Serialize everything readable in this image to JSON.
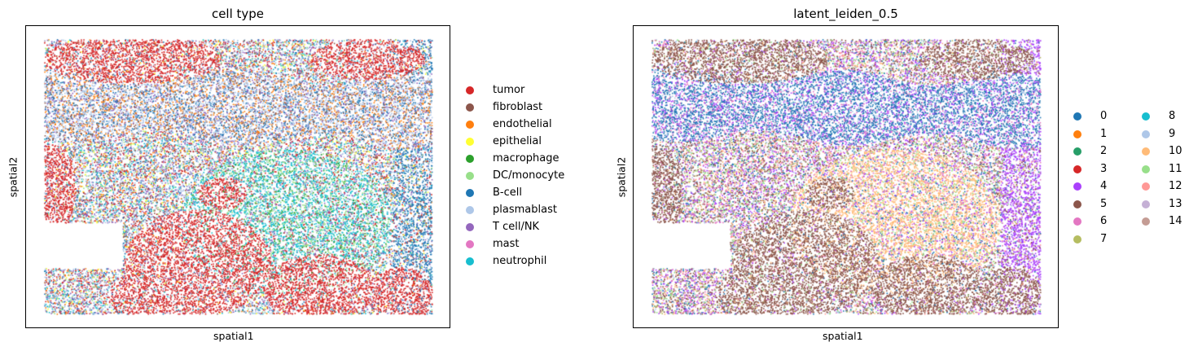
{
  "chart_data": [
    {
      "type": "scatter",
      "title": "cell type",
      "xlabel": "spatial1",
      "ylabel": "spatial2",
      "xticks": [],
      "yticks": [],
      "legend_placement": "right",
      "legend": [
        {
          "label": "tumor",
          "color": "#d62728"
        },
        {
          "label": "fibroblast",
          "color": "#8c564b"
        },
        {
          "label": "endothelial",
          "color": "#ff7f0e"
        },
        {
          "label": "epithelial",
          "color": "#ffff33"
        },
        {
          "label": "macrophage",
          "color": "#2ca02c"
        },
        {
          "label": "DC/monocyte",
          "color": "#98df8a"
        },
        {
          "label": "B-cell",
          "color": "#1f77b4"
        },
        {
          "label": "plasmablast",
          "color": "#aec7e8"
        },
        {
          "label": "T cell/NK",
          "color": "#9467bd"
        },
        {
          "label": "mast",
          "color": "#e377c2"
        },
        {
          "label": "neutrophil",
          "color": "#17becf"
        }
      ]
    },
    {
      "type": "scatter",
      "title": "latent_leiden_0.5",
      "xlabel": "spatial1",
      "ylabel": "spatial2",
      "xticks": [],
      "yticks": [],
      "legend_placement": "right",
      "legend": [
        {
          "label": "0",
          "color": "#1f77b4"
        },
        {
          "label": "1",
          "color": "#ff7f0e"
        },
        {
          "label": "2",
          "color": "#279e68"
        },
        {
          "label": "3",
          "color": "#d62728"
        },
        {
          "label": "4",
          "color": "#aa40fc"
        },
        {
          "label": "5",
          "color": "#8c564b"
        },
        {
          "label": "6",
          "color": "#e377c2"
        },
        {
          "label": "7",
          "color": "#b5bd61"
        },
        {
          "label": "8",
          "color": "#17becf"
        },
        {
          "label": "9",
          "color": "#aec7e8"
        },
        {
          "label": "10",
          "color": "#ffbb78"
        },
        {
          "label": "11",
          "color": "#98df8a"
        },
        {
          "label": "12",
          "color": "#ff9896"
        },
        {
          "label": "13",
          "color": "#c5b0d5"
        },
        {
          "label": "14",
          "color": "#c49c94"
        }
      ]
    }
  ]
}
